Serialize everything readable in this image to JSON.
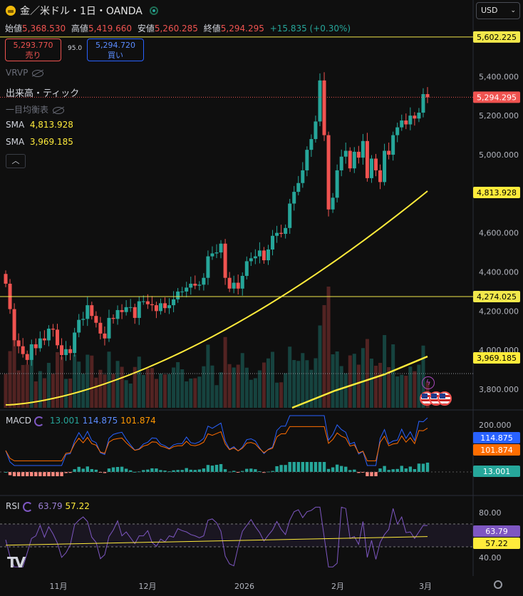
{
  "header": {
    "symbol": "金／米ドル・1日・OANDA",
    "open_label": "始値",
    "open": "5,368.530",
    "high_label": "高値",
    "high": "5,419.660",
    "low_label": "安値",
    "low": "5,260.285",
    "close_label": "終値",
    "close": "5,294.295",
    "change": "+15.835 (+0.30%)"
  },
  "trade": {
    "sell_price": "5,293.770",
    "sell_label": "売り",
    "spread": "95.0",
    "buy_price": "5,294.720",
    "buy_label": "買い"
  },
  "currency": "USD",
  "indicators": {
    "vrvp": "VRVP",
    "volume_tick": "出来高・ティック",
    "ichimoku": "一目均衡表",
    "sma1_label": "SMA",
    "sma1_value": "4,813.928",
    "sma2_label": "SMA",
    "sma2_value": "3,969.185",
    "collapse_icon": "chevron-up"
  },
  "macd": {
    "label": "MACD",
    "v1": "13.001",
    "v2": "114.875",
    "v3": "101.874"
  },
  "rsi": {
    "label": "RSI",
    "v1": "63.79",
    "v2": "57.22"
  },
  "colors": {
    "up": "#26a69a",
    "down": "#ef5350",
    "sma_long": "#ffeb3b",
    "macd_line": "#2962ff",
    "signal_line": "#ff6d00",
    "rsi_line": "#7e57c2",
    "hline": "#f2e84b"
  },
  "chart_data": {
    "type": "candlestick",
    "symbol": "金／米ドル",
    "timeframe": "1日",
    "x_tick_labels": [
      "11月",
      "12月",
      "2026",
      "2月",
      "3月"
    ],
    "y_ticks": [
      "3,800.000",
      "4,000.000",
      "4,200.000",
      "4,400.000",
      "4,600.000",
      "4,800.000",
      "5,000.000",
      "5,200.000",
      "5,400.000"
    ],
    "price_ylim": [
      3700,
      5700
    ],
    "horizontal_lines": [
      {
        "value": 5602.225,
        "label": "5,602.225"
      },
      {
        "value": 4274.025,
        "label": "4,274.025"
      }
    ],
    "price_labels": {
      "last": "5,294.295",
      "sma1": "4,813.928",
      "sma2": "3,969.185",
      "volume_level": "3,969.185"
    },
    "closes": [
      4340,
      4210,
      4050,
      4020,
      3980,
      3950,
      4030,
      4010,
      4060,
      4050,
      4110,
      4105,
      4025,
      3975,
      4005,
      3985,
      4090,
      4155,
      4160,
      4230,
      4175,
      4140,
      4085,
      4060,
      4165,
      4160,
      4205,
      4195,
      4220,
      4220,
      4165,
      4250,
      4250,
      4235,
      4230,
      4200,
      4240,
      4215,
      4230,
      4260,
      4300,
      4300,
      4320,
      4340,
      4330,
      4335,
      4370,
      4480,
      4495,
      4500,
      4545,
      4370,
      4315,
      4345,
      4315,
      4380,
      4455,
      4470,
      4480,
      4510,
      4460,
      4515,
      4585,
      4600,
      4595,
      4625,
      4750,
      4810,
      4855,
      4920,
      5025,
      5080,
      5170,
      5380,
      5100,
      4720,
      4780,
      4920,
      4990,
      5020,
      4930,
      5015,
      4985,
      5070,
      4880,
      4980,
      4920,
      4860,
      5020,
      5000,
      5100,
      5140,
      5175,
      5155,
      5200,
      5185,
      5215,
      5310,
      5294
    ],
    "sma_long_start": 3720,
    "sma_long_end": 4813.928,
    "macd": {
      "ticks": [
        "200.000"
      ],
      "macd_last": 114.875,
      "signal_last": 101.874,
      "hist_last": 13.001
    },
    "rsi": {
      "ticks": [
        "80.00",
        "40.00"
      ],
      "rsi_last": 63.79,
      "ma_last": 57.22
    }
  }
}
